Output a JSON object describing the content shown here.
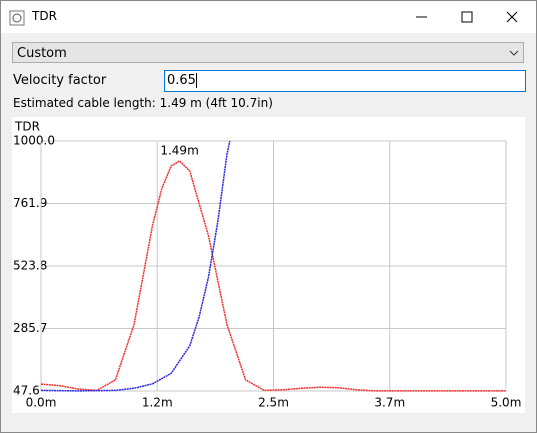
{
  "window": {
    "title": "TDR"
  },
  "form": {
    "preset": "Custom",
    "velocity_label": "Velocity factor",
    "velocity_value": "0.65",
    "estimate": "Estimated cable length: 1.49 m (4ft 10.7in)"
  },
  "chart_data": {
    "type": "line",
    "title": "TDR",
    "xlim": [
      0,
      5
    ],
    "ylim": [
      47.6,
      1000
    ],
    "xticks": [
      {
        "value": 0,
        "label": "0.0m"
      },
      {
        "value": 1.25,
        "label": "1.2m"
      },
      {
        "value": 2.5,
        "label": "2.5m"
      },
      {
        "value": 3.75,
        "label": "3.7m"
      },
      {
        "value": 5,
        "label": "5.0m"
      }
    ],
    "yticks": [
      47.6,
      285.7,
      523.8,
      761.9,
      {
        "value": 1000,
        "label": "1000.0"
      }
    ],
    "grid": true,
    "series": [
      {
        "color": "#f03030",
        "x": [
          0,
          0.2,
          0.4,
          0.6,
          0.8,
          1.0,
          1.2,
          1.3,
          1.4,
          1.49,
          1.6,
          1.8,
          2.0,
          2.2,
          2.4,
          2.6,
          2.8,
          3.0,
          3.2,
          3.4,
          3.6,
          4.0,
          4.5,
          5.0
        ],
        "values": [
          74,
          68,
          55,
          50,
          90,
          300,
          680,
          820,
          905,
          924,
          885,
          640,
          300,
          90,
          50,
          52,
          58,
          62,
          60,
          52,
          48,
          48,
          48,
          48
        ]
      },
      {
        "color": "#2828e0",
        "x": [
          0,
          0.4,
          0.8,
          1.0,
          1.2,
          1.4,
          1.6,
          1.7,
          1.8,
          1.9,
          2.0,
          2.03
        ],
        "values": [
          50,
          48,
          50,
          58,
          75,
          115,
          220,
          330,
          480,
          690,
          950,
          1000
        ]
      }
    ],
    "annotations": [
      {
        "text": "1.49m",
        "x": 1.49,
        "y": 924
      }
    ]
  }
}
